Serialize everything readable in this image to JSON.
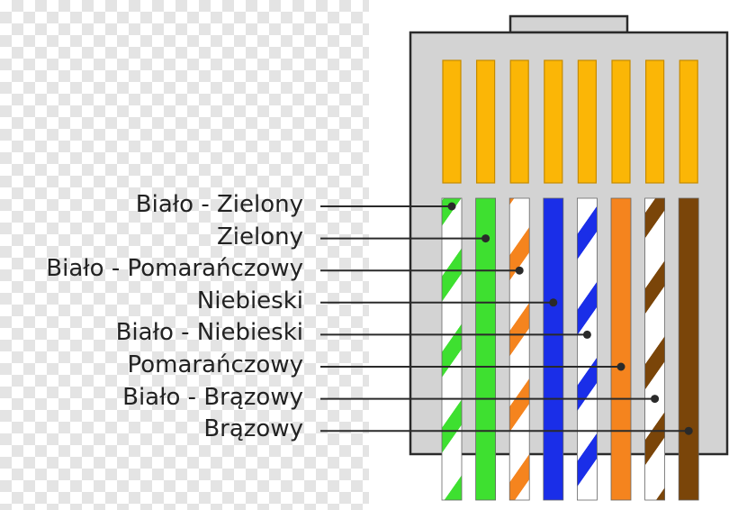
{
  "connector": {
    "body_color": "#d3d3d3",
    "outline_color": "#2a2a2a",
    "contact_color": "#fbb606"
  },
  "wires": [
    {
      "label": "Biało - Zielony",
      "color": "#3ee030",
      "striped": true
    },
    {
      "label": "Zielony",
      "color": "#3ee030",
      "striped": false
    },
    {
      "label": "Biało - Pomarańczowy",
      "color": "#f5841e",
      "striped": true
    },
    {
      "label": "Niebieski",
      "color": "#1a2ee8",
      "striped": false
    },
    {
      "label": "Biało - Niebieski",
      "color": "#1a2ee8",
      "striped": true
    },
    {
      "label": "Pomarańczowy",
      "color": "#f5841e",
      "striped": false
    },
    {
      "label": "Biało - Brązowy",
      "color": "#7a4509",
      "striped": true
    },
    {
      "label": "Brązowy",
      "color": "#7a4509",
      "striped": false
    }
  ]
}
